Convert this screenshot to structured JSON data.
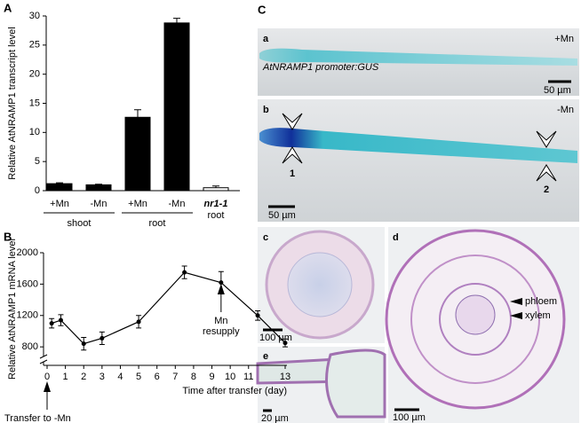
{
  "panel_labels": [
    "A",
    "B",
    "C"
  ],
  "chart_data": [
    {
      "type": "bar",
      "ylabel": "Relative AtNRAMP1 transcript level",
      "groups": [
        {
          "name": "shoot",
          "categories": [
            "+Mn",
            "-Mn"
          ]
        },
        {
          "name": "root",
          "categories": [
            "+Mn",
            "-Mn"
          ]
        },
        {
          "name": "root",
          "categories": [
            "nr1-1"
          ]
        }
      ],
      "values": [
        1.2,
        1.0,
        12.6,
        28.8,
        0.5
      ],
      "errors": [
        0.15,
        0.1,
        1.3,
        0.8,
        0.3
      ],
      "colors": [
        "#000000",
        "#000000",
        "#000000",
        "#000000",
        "#ffffff"
      ],
      "ylim": [
        0,
        30
      ],
      "yticks": [
        0,
        5,
        10,
        15,
        20,
        25,
        30
      ]
    },
    {
      "type": "line",
      "ylabel": "Relative AtNRAMP1 mRNA level",
      "xlabel": "Time after transfer (day)",
      "x": [
        0.25,
        0.75,
        2,
        3,
        5,
        7.5,
        9.5,
        11.5,
        13
      ],
      "values": [
        1100,
        1140,
        840,
        910,
        1120,
        1750,
        1620,
        1200,
        850
      ],
      "errors": [
        60,
        70,
        80,
        80,
        80,
        80,
        140,
        60,
        50
      ],
      "color": "#000000",
      "xlim": [
        0,
        13
      ],
      "xticks": [
        0,
        1,
        2,
        3,
        4,
        5,
        6,
        7,
        8,
        9,
        10,
        11,
        13
      ],
      "ylim": [
        700,
        2000
      ],
      "yticks": [
        800,
        1200,
        1600,
        2000
      ],
      "annotations": [
        {
          "lines": [
            "Mn",
            "resupply"
          ]
        },
        {
          "lines": [
            "Transfer to -Mn"
          ]
        }
      ]
    }
  ],
  "panel_c": {
    "a": {
      "label": "a",
      "condition": "+Mn",
      "caption": "AtNRAMP1 promoter:GUS",
      "scale": "50 µm"
    },
    "b": {
      "label": "b",
      "condition": "-Mn",
      "markers": [
        "1",
        "2"
      ],
      "scale": "50 µm"
    },
    "c": {
      "label": "c",
      "scale": "100 µm"
    },
    "d": {
      "label": "d",
      "tissues": [
        "phloem",
        "xylem"
      ],
      "scale": "100 µm"
    },
    "e": {
      "label": "e",
      "scale": "20 µm"
    }
  }
}
